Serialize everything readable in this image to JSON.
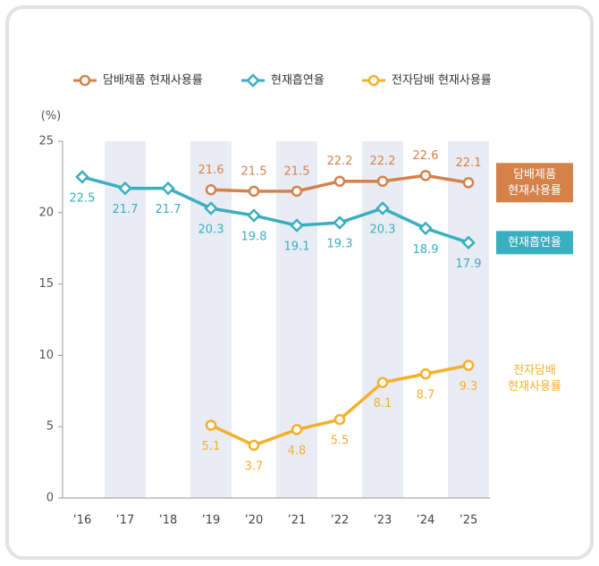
{
  "chart_data": {
    "type": "line",
    "categories": [
      "’16",
      "’17",
      "’18",
      "’19",
      "’20",
      "’21",
      "’22",
      "’23",
      "’24",
      "’25"
    ],
    "y_label": "(%)",
    "ylim": [
      0,
      25
    ],
    "yticks": [
      0,
      5,
      10,
      15,
      20,
      25
    ],
    "band_color": "#e9ecf4",
    "series": [
      {
        "name": "담배제품 현재사용률",
        "color": "#d4824a",
        "marker": "circle",
        "label_side": "above",
        "end_label": [
          "담배제품",
          "현재사용률"
        ],
        "end_label_box": true,
        "values": [
          null,
          null,
          null,
          21.6,
          21.5,
          21.5,
          22.2,
          22.2,
          22.6,
          22.1
        ]
      },
      {
        "name": "현재흡연율",
        "color": "#3aafbf",
        "marker": "diamond",
        "label_side": "below",
        "end_label": [
          "현재흡연율"
        ],
        "end_label_box": true,
        "values": [
          22.5,
          21.7,
          21.7,
          20.3,
          19.8,
          19.1,
          19.3,
          20.3,
          18.9,
          17.9
        ]
      },
      {
        "name": "전자담배 현재사용률",
        "color": "#f3b12a",
        "marker": "circle",
        "label_side": "below",
        "end_label": [
          "전자담배",
          "현재사용률"
        ],
        "end_label_box": false,
        "values": [
          null,
          null,
          null,
          5.1,
          3.7,
          4.8,
          5.5,
          8.1,
          8.7,
          9.3
        ]
      }
    ]
  }
}
